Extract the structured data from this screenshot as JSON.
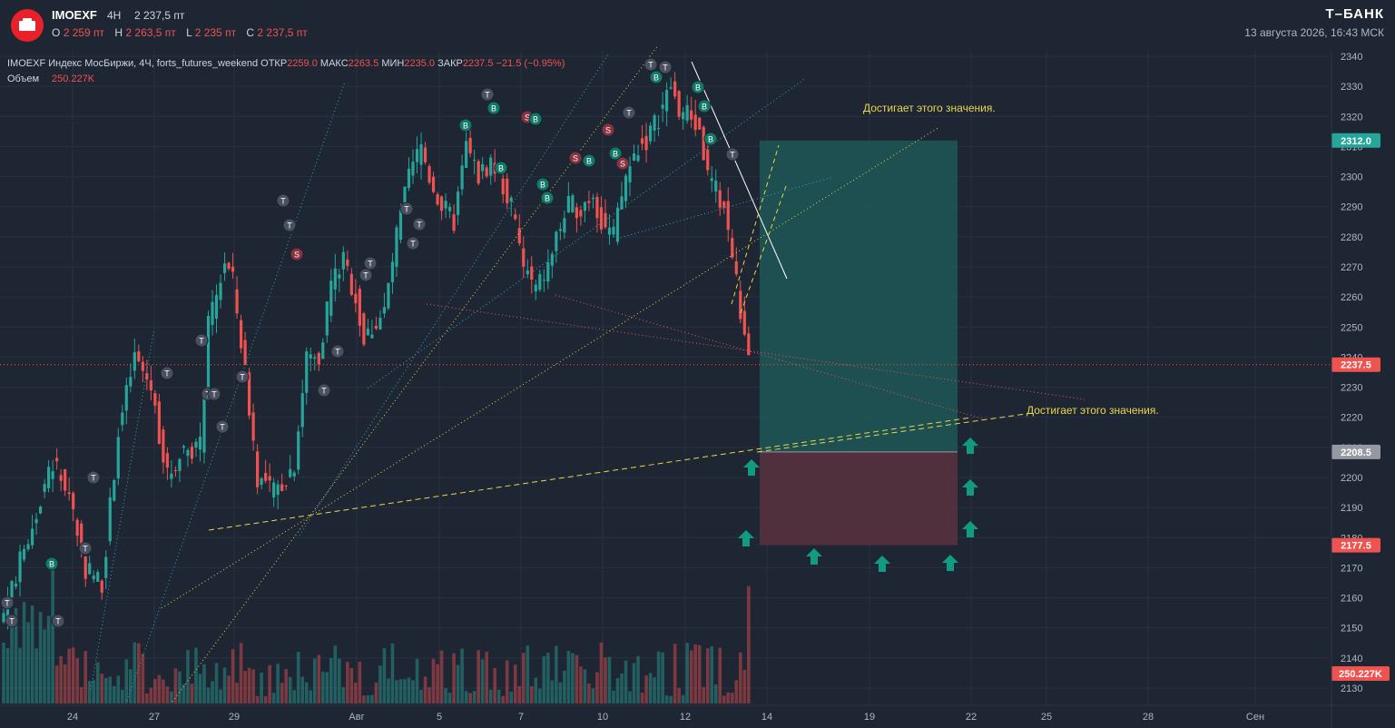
{
  "header": {
    "ticker": "IMOEXF",
    "timeframe": "4H",
    "last_price": "2 237,5 пт",
    "ohlc": [
      {
        "label": "O",
        "value": "2 259 пт"
      },
      {
        "label": "H",
        "value": "2 263,5 пт"
      },
      {
        "label": "L",
        "value": "2 235 пт"
      },
      {
        "label": "C",
        "value": "2 237,5 пт"
      }
    ],
    "brand": "Т–БАНК",
    "datetime": "13 августа 2026, 16:43 МСК"
  },
  "legend": {
    "title": "IMOEXF Индекс МосБиржи, 4Ч, forts_futures_weekend",
    "open_label": "ОТКР",
    "open_value": "2259.0",
    "high_label": "МАКС",
    "high_value": "2263.5",
    "low_label": "МИН",
    "low_value": "2235.0",
    "close_label": "ЗАКР",
    "close_value": "2237.5",
    "change": "−21.5 (−0.95%)",
    "volume_label": "Объем",
    "volume_value": "250.227K"
  },
  "annotations": {
    "upper_text": "Достигает этого значения.",
    "lower_text": "Достигает этого значения."
  },
  "colors": {
    "background": "#1e2533",
    "up": "#26a69a",
    "down": "#ef5350",
    "grid": "#2a3142",
    "yellow": "#e8d84a",
    "cyan": "#2fa8c9",
    "target_zone": "#1f5e5c",
    "stop_zone": "#5a3340",
    "marker_green": "#119b82"
  },
  "chart_data": {
    "type": "candlestick",
    "y_ticks": [
      2130,
      2140,
      2150,
      2160,
      2170,
      2180,
      2190,
      2200,
      2210,
      2220,
      2230,
      2240,
      2250,
      2260,
      2270,
      2280,
      2290,
      2300,
      2310,
      2320,
      2330,
      2340
    ],
    "ylim": [
      2125,
      2342
    ],
    "x_ticks": [
      "24",
      "27",
      "29",
      "Авг",
      "5",
      "7",
      "10",
      "12",
      "14",
      "19",
      "22",
      "25",
      "28",
      "Сен"
    ],
    "price_labels": [
      {
        "value": 2312.0,
        "text": "2312.0",
        "color": "#26a69a"
      },
      {
        "value": 2237.5,
        "text": "2237.5",
        "color": "#ef5350"
      },
      {
        "value": 2208.5,
        "text": "2208.5",
        "color": "#9598a1"
      },
      {
        "value": 2177.5,
        "text": "2177.5",
        "color": "#ef5350"
      }
    ],
    "volume_label": {
      "text": "250.227K",
      "color": "#ef5350"
    },
    "current_price": 2237.5,
    "position": {
      "entry": 2208.5,
      "target": 2312.0,
      "stop": 2177.5
    },
    "anchor_points": [
      [
        0,
        2155
      ],
      [
        6,
        2180
      ],
      [
        12,
        2205
      ],
      [
        16,
        2195
      ],
      [
        20,
        2170
      ],
      [
        24,
        2165
      ],
      [
        28,
        2215
      ],
      [
        32,
        2240
      ],
      [
        36,
        2230
      ],
      [
        40,
        2200
      ],
      [
        44,
        2210
      ],
      [
        48,
        2210
      ],
      [
        50,
        2250
      ],
      [
        52,
        2260
      ],
      [
        54,
        2272
      ],
      [
        56,
        2265
      ],
      [
        59,
        2235
      ],
      [
        62,
        2200
      ],
      [
        66,
        2195
      ],
      [
        69,
        2200
      ],
      [
        71,
        2205
      ],
      [
        74,
        2240
      ],
      [
        77,
        2240
      ],
      [
        80,
        2265
      ],
      [
        83,
        2272
      ],
      [
        86,
        2260
      ],
      [
        88,
        2245
      ],
      [
        90,
        2250
      ],
      [
        93,
        2255
      ],
      [
        96,
        2280
      ],
      [
        99,
        2300
      ],
      [
        102,
        2310
      ],
      [
        104,
        2300
      ],
      [
        107,
        2290
      ],
      [
        110,
        2285
      ],
      [
        113,
        2310
      ],
      [
        116,
        2300
      ],
      [
        119,
        2305
      ],
      [
        121,
        2300
      ],
      [
        124,
        2290
      ],
      [
        127,
        2270
      ],
      [
        130,
        2262
      ],
      [
        133,
        2270
      ],
      [
        135,
        2280
      ],
      [
        138,
        2290
      ],
      [
        141,
        2290
      ],
      [
        144,
        2295
      ],
      [
        146,
        2285
      ],
      [
        149,
        2280
      ],
      [
        152,
        2300
      ],
      [
        155,
        2310
      ],
      [
        157,
        2312
      ],
      [
        160,
        2320
      ],
      [
        163,
        2330
      ],
      [
        165,
        2322
      ],
      [
        168,
        2320
      ],
      [
        170,
        2315
      ],
      [
        172,
        2300
      ],
      [
        174,
        2295
      ],
      [
        176,
        2290
      ],
      [
        179,
        2265
      ],
      [
        181,
        2245
      ],
      [
        182,
        2237.5
      ]
    ]
  }
}
